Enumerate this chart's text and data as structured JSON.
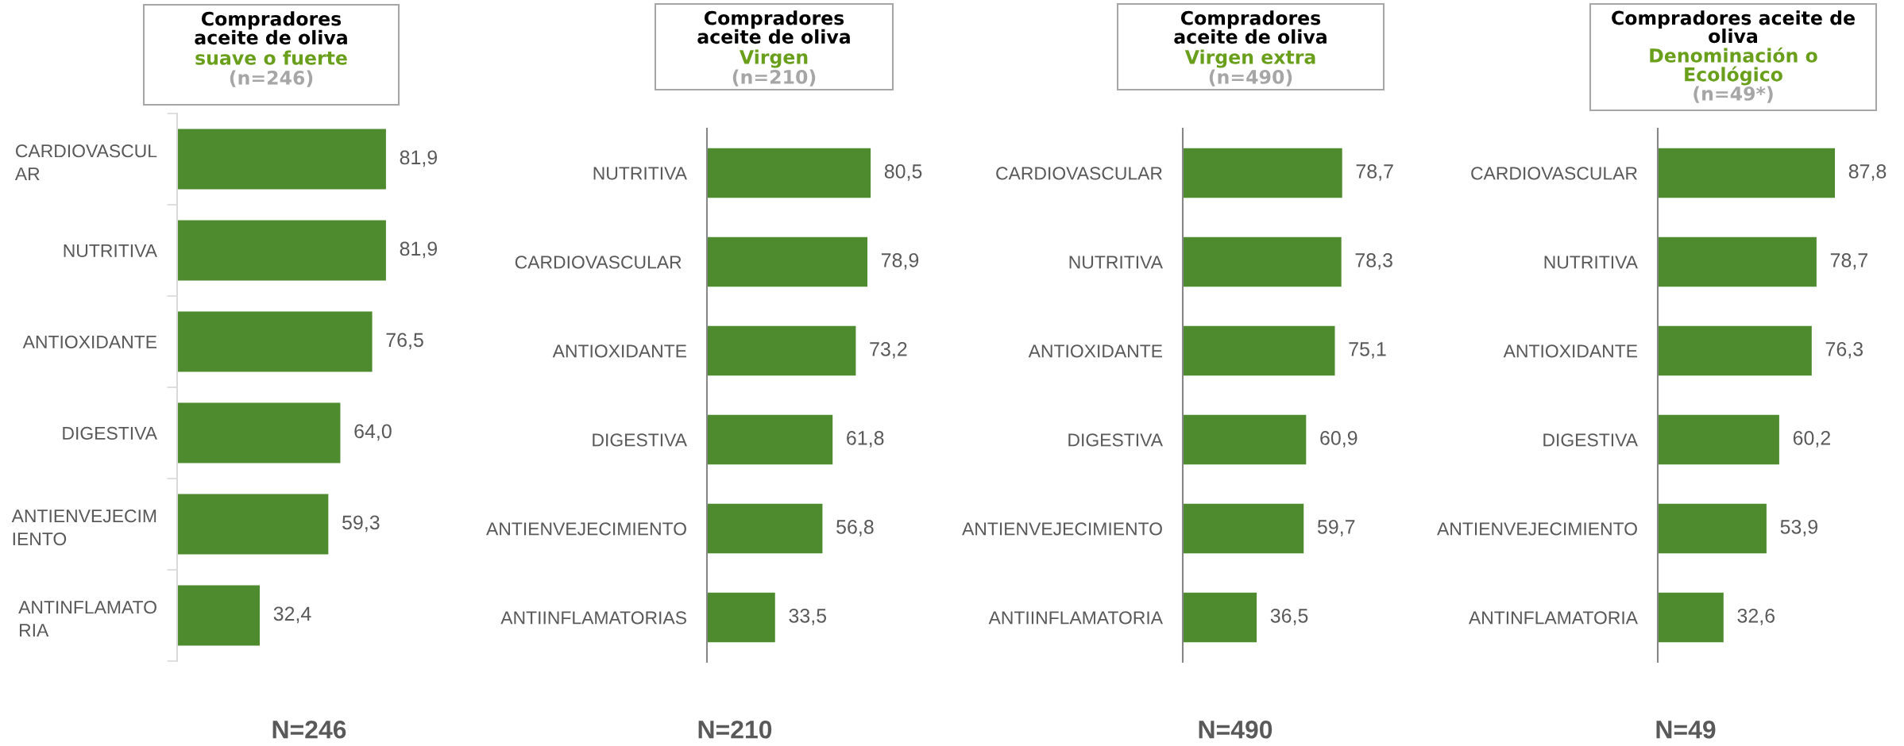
{
  "chart_data": [
    {
      "type": "bar",
      "orientation": "horizontal",
      "title": "Compradores\naceite de oliva",
      "subtitle": "suave o fuerte",
      "categories": [
        "CARDIOVASCUL\nAR",
        "NUTRITIVA",
        "ANTIOXIDANTE",
        "DIGESTIVA",
        "ANTIENVEJECIM\nIENTO",
        "ANTINFLAMATO\nRIA"
      ],
      "values": [
        81.9,
        81.9,
        76.5,
        64.0,
        59.3,
        32.4
      ],
      "value_labels": [
        "81,9",
        "81,9",
        "76,5",
        "64,0",
        "59,3",
        "32,4"
      ],
      "color": "#4e8a2e",
      "tick_labels": "y",
      "annotations": [
        "(n=246)",
        "N=246"
      ]
    },
    {
      "type": "bar",
      "orientation": "horizontal",
      "title": "Compradores\naceite de oliva",
      "subtitle": "Virgen",
      "categories": [
        "NUTRITIVA",
        "CARDIOVASCULAR ",
        "ANTIOXIDANTE",
        "DIGESTIVA",
        "ANTIENVEJECIMIENTO",
        "ANTIINFLAMATORIAS"
      ],
      "values": [
        80.5,
        78.9,
        73.2,
        61.8,
        56.8,
        33.5
      ],
      "value_labels": [
        "80,5",
        "78,9",
        "73,2",
        "61,8",
        "56,8",
        "33,5"
      ],
      "color": "#4e8a2e",
      "tick_labels": "y",
      "annotations": [
        "(n=210)",
        "N=210"
      ]
    },
    {
      "type": "bar",
      "orientation": "horizontal",
      "title": "Compradores\naceite de oliva",
      "subtitle": "Virgen extra",
      "categories": [
        "CARDIOVASCULAR",
        "NUTRITIVA",
        "ANTIOXIDANTE",
        "DIGESTIVA",
        "ANTIENVEJECIMIENTO",
        "ANTIINFLAMATORIA"
      ],
      "values": [
        78.7,
        78.3,
        75.1,
        60.9,
        59.7,
        36.5
      ],
      "value_labels": [
        "78,7",
        "78,3",
        "75,1",
        "60,9",
        "59,7",
        "36,5"
      ],
      "color": "#4e8a2e",
      "tick_labels": "y",
      "annotations": [
        "(n=490)",
        "N=490"
      ]
    },
    {
      "type": "bar",
      "orientation": "horizontal",
      "title": "Compradores aceite de\noliva",
      "subtitle": "Denominación o\nEcológico",
      "categories": [
        "CARDIOVASCULAR",
        "NUTRITIVA",
        "ANTIOXIDANTE",
        "DIGESTIVA",
        "ANTIENVEJECIMIENTO",
        "ANTINFLAMATORIA"
      ],
      "values": [
        87.8,
        78.7,
        76.3,
        60.2,
        53.9,
        32.6
      ],
      "value_labels": [
        "87,8",
        "78,7",
        "76,3",
        "60,2",
        "53,9",
        "32,6"
      ],
      "color": "#4e8a2e",
      "tick_labels": "y",
      "annotations": [
        "(n=49*)",
        "N=49"
      ]
    }
  ]
}
